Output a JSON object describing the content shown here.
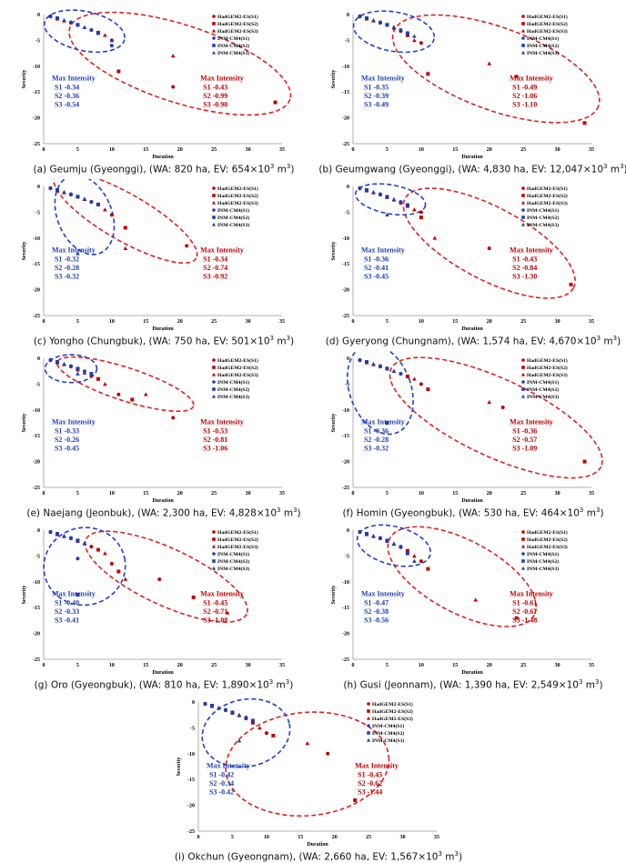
{
  "legend": [
    "HadGEM2-ES(S1)",
    "HadGEM2-ES(S2)",
    "HadGEM2-ES(S3)",
    "INM-CM4(S1)",
    "INM-CM4(S2)",
    "INM-CM4(S3)"
  ],
  "colors": {
    "hadgem": "#c00000",
    "inm": "#1f3fb0",
    "ellipse_red": "#e02020",
    "ellipse_blue": "#1f3fd0"
  },
  "chart_data": [
    {
      "type": "scatter",
      "caption": "(a) Geumju (Gyeonggi), (WA: 820 ha, EV: 654×10",
      "xlabel": "Duration",
      "ylabel": "Severity",
      "xlim": [
        0,
        35
      ],
      "ylim": [
        -25,
        0
      ],
      "xticks": [
        0,
        5,
        10,
        15,
        20,
        25,
        30,
        35
      ],
      "yticks": [
        0,
        -5,
        -10,
        -15,
        -20,
        -25
      ],
      "max_intensity": {
        "label": "Max Intensity",
        "blue": [
          "S1 -0.34",
          "S2 -0.36",
          "S3 -0.54"
        ],
        "red": [
          "S1 -0.43",
          "S2 -0.99",
          "S3 -0.90"
        ]
      },
      "hadgem": [
        [
          1,
          -0.4
        ],
        [
          2,
          -0.8
        ],
        [
          3,
          -1.2
        ],
        [
          4,
          -1.6
        ],
        [
          5,
          -2.0
        ],
        [
          6,
          -2.5
        ],
        [
          7,
          -3.0
        ],
        [
          8,
          -3.5
        ],
        [
          9,
          -4.0
        ],
        [
          10,
          -5.0
        ],
        [
          11,
          -11.0
        ],
        [
          19,
          -8.0
        ],
        [
          19,
          -14.0
        ],
        [
          34,
          -17.0
        ]
      ],
      "inm": [
        [
          1,
          -0.3
        ],
        [
          2,
          -0.7
        ],
        [
          3,
          -1.1
        ],
        [
          4,
          -1.5
        ],
        [
          5,
          -2.0
        ],
        [
          6,
          -2.5
        ],
        [
          7,
          -3.0
        ],
        [
          8,
          -3.6
        ],
        [
          10,
          -5.0
        ],
        [
          10,
          -6.0
        ]
      ]
    },
    {
      "type": "scatter",
      "caption": "(b) Geumgwang (Gyeonggi), (WA: 4,830 ha, EV: 12,047×10",
      "xlabel": "Duration",
      "ylabel": "Severity",
      "xlim": [
        0,
        35
      ],
      "ylim": [
        -25,
        0
      ],
      "xticks": [
        0,
        5,
        10,
        15,
        20,
        25,
        30,
        35
      ],
      "yticks": [
        0,
        -5,
        -10,
        -15,
        -20,
        -25
      ],
      "max_intensity": {
        "label": "Max Intensity",
        "blue": [
          "S1 -0.35",
          "S2 -0.39",
          "S3 -0.49"
        ],
        "red": [
          "S1 -0.49",
          "S2 -1.06",
          "S3 -1.10"
        ]
      },
      "hadgem": [
        [
          1,
          -0.4
        ],
        [
          2,
          -0.8
        ],
        [
          3,
          -1.2
        ],
        [
          4,
          -1.6
        ],
        [
          5,
          -2.0
        ],
        [
          6,
          -2.6
        ],
        [
          7,
          -3.2
        ],
        [
          8,
          -4.0
        ],
        [
          9,
          -5.0
        ],
        [
          10,
          -5.5
        ],
        [
          11,
          -11.5
        ],
        [
          20,
          -9.5
        ],
        [
          24,
          -12.0
        ],
        [
          34,
          -21.0
        ]
      ],
      "inm": [
        [
          1,
          -0.3
        ],
        [
          2,
          -0.7
        ],
        [
          3,
          -1.1
        ],
        [
          4,
          -1.5
        ],
        [
          5,
          -2.0
        ],
        [
          6,
          -2.4
        ],
        [
          7,
          -3.0
        ],
        [
          8,
          -3.6
        ],
        [
          9,
          -4.2
        ]
      ]
    },
    {
      "type": "scatter",
      "caption": "(c) Yongho (Chungbuk), (WA: 750 ha, EV: 501×10",
      "xlabel": "Duration",
      "ylabel": "Severity",
      "xlim": [
        0,
        35
      ],
      "ylim": [
        -25,
        0
      ],
      "xticks": [
        0,
        5,
        10,
        15,
        20,
        25,
        30,
        35
      ],
      "yticks": [
        0,
        -5,
        -10,
        -15,
        -20,
        -25
      ],
      "max_intensity": {
        "label": "Max Intensity",
        "blue": [
          "S1 -0.32",
          "S2 -0.28",
          "S3 -0.32"
        ],
        "red": [
          "S1 -0.34",
          "S2 -0.74",
          "S3 -0.92"
        ]
      },
      "hadgem": [
        [
          1,
          -0.4
        ],
        [
          2,
          -0.8
        ],
        [
          3,
          -1.2
        ],
        [
          4,
          -1.6
        ],
        [
          5,
          -2.0
        ],
        [
          6,
          -2.5
        ],
        [
          7,
          -3.0
        ],
        [
          8,
          -3.5
        ],
        [
          9,
          -4.5
        ],
        [
          10,
          -5.5
        ],
        [
          12,
          -8.0
        ],
        [
          12,
          -12.0
        ],
        [
          21,
          -11.5
        ]
      ],
      "inm": [
        [
          1,
          -0.3
        ],
        [
          2,
          -0.7
        ],
        [
          3,
          -1.1
        ],
        [
          4,
          -1.5
        ],
        [
          5,
          -2.0
        ],
        [
          6,
          -2.4
        ],
        [
          7,
          -3.0
        ],
        [
          8,
          -3.5
        ],
        [
          5,
          -13.0
        ]
      ]
    },
    {
      "type": "scatter",
      "caption": "(d) Gyeryong (Chungnam), (WA: 1,574 ha, EV: 4,670×10",
      "xlabel": "Duration",
      "ylabel": "Severity",
      "xlim": [
        0,
        35
      ],
      "ylim": [
        -25,
        0
      ],
      "xticks": [
        0,
        5,
        10,
        15,
        20,
        25,
        30,
        35
      ],
      "yticks": [
        0,
        -5,
        -10,
        -15,
        -20,
        -25
      ],
      "max_intensity": {
        "label": "Max Intensity",
        "blue": [
          "S1 -0.36",
          "S2 -0.41",
          "S3 -0.45"
        ],
        "red": [
          "S1 -0.43",
          "S2 -0.84",
          "S3 -1.30"
        ]
      },
      "hadgem": [
        [
          1,
          -0.4
        ],
        [
          2,
          -0.8
        ],
        [
          3,
          -1.2
        ],
        [
          4,
          -1.6
        ],
        [
          5,
          -2.1
        ],
        [
          6,
          -2.6
        ],
        [
          7,
          -3.2
        ],
        [
          8,
          -3.8
        ],
        [
          9,
          -4.5
        ],
        [
          10,
          -5.0
        ],
        [
          10,
          -6.0
        ],
        [
          12,
          -10.0
        ],
        [
          20,
          -12.0
        ],
        [
          32,
          -19.0
        ]
      ],
      "inm": [
        [
          1,
          -0.3
        ],
        [
          2,
          -0.7
        ],
        [
          3,
          -1.1
        ],
        [
          4,
          -1.5
        ],
        [
          5,
          -2.0
        ],
        [
          6,
          -2.5
        ],
        [
          7,
          -3.0
        ],
        [
          8,
          -3.6
        ],
        [
          5,
          -5.5
        ]
      ]
    },
    {
      "type": "scatter",
      "caption": "(e) Naejang (Jeonbuk), (WA: 2,300 ha, EV: 4,828×10",
      "xlabel": "Duration",
      "ylabel": "Severity",
      "xlim": [
        0,
        35
      ],
      "ylim": [
        -25,
        0
      ],
      "xticks": [
        0,
        5,
        10,
        15,
        20,
        25,
        30,
        35
      ],
      "yticks": [
        0,
        -5,
        -10,
        -15,
        -20,
        -25
      ],
      "max_intensity": {
        "label": "Max Intensity",
        "blue": [
          "S1 -0.33",
          "S2 -0.26",
          "S3 -0.45"
        ],
        "red": [
          "S1 -0.53",
          "S2 -0.81",
          "S3 -1.06"
        ]
      },
      "hadgem": [
        [
          1,
          -0.4
        ],
        [
          2,
          -0.8
        ],
        [
          3,
          -1.2
        ],
        [
          4,
          -1.6
        ],
        [
          5,
          -2.2
        ],
        [
          6,
          -2.8
        ],
        [
          7,
          -3.4
        ],
        [
          8,
          -4.0
        ],
        [
          9,
          -5.0
        ],
        [
          11,
          -7.0
        ],
        [
          13,
          -8.0
        ],
        [
          15,
          -7.0
        ],
        [
          19,
          -11.5
        ]
      ],
      "inm": [
        [
          1,
          -0.3
        ],
        [
          2,
          -0.7
        ],
        [
          3,
          -1.1
        ],
        [
          4,
          -1.5
        ],
        [
          5,
          -2.0
        ],
        [
          5,
          -3.0
        ],
        [
          6,
          -2.5
        ],
        [
          7,
          -3.0
        ]
      ]
    },
    {
      "type": "scatter",
      "caption": "(f) Homin (Gyeongbuk), (WA: 530 ha, EV: 464×10",
      "xlabel": "Duration",
      "ylabel": "Severity",
      "xlim": [
        0,
        35
      ],
      "ylim": [
        -25,
        0
      ],
      "xticks": [
        0,
        5,
        10,
        15,
        20,
        25,
        30,
        35
      ],
      "yticks": [
        0,
        -5,
        -10,
        -15,
        -20,
        -25
      ],
      "max_intensity": {
        "label": "Max Intensity",
        "blue": [
          "S1 -0.36",
          "S2 -0.28",
          "S3 -0.32"
        ],
        "red": [
          "S1 -0.36",
          "S2 -0.57",
          "S3 -1.09"
        ]
      },
      "hadgem": [
        [
          1,
          -0.4
        ],
        [
          2,
          -0.8
        ],
        [
          3,
          -1.2
        ],
        [
          4,
          -1.6
        ],
        [
          5,
          -2.0
        ],
        [
          6,
          -2.5
        ],
        [
          7,
          -3.0
        ],
        [
          8,
          -3.5
        ],
        [
          9,
          -4.0
        ],
        [
          10,
          -5.0
        ],
        [
          11,
          -6.0
        ],
        [
          20,
          -8.5
        ],
        [
          22,
          -9.5
        ],
        [
          34,
          -20.0
        ]
      ],
      "inm": [
        [
          1,
          -0.3
        ],
        [
          2,
          -0.7
        ],
        [
          3,
          -1.1
        ],
        [
          4,
          -1.5
        ],
        [
          5,
          -2.0
        ],
        [
          6,
          -2.5
        ],
        [
          7,
          -3.0
        ],
        [
          5,
          -12.5
        ]
      ]
    },
    {
      "type": "scatter",
      "caption": "(g) Oro (Gyeongbuk), (WA: 810 ha, EV: 1,890×10",
      "xlabel": "Duration",
      "ylabel": "Severity",
      "xlim": [
        0,
        35
      ],
      "ylim": [
        -25,
        0
      ],
      "xticks": [
        0,
        5,
        10,
        15,
        20,
        25,
        30,
        35
      ],
      "yticks": [
        0,
        -5,
        -10,
        -15,
        -20,
        -25
      ],
      "max_intensity": {
        "label": "Max Intensity",
        "blue": [
          "S1 -0.40",
          "S2 -0.33",
          "S3 -0.41"
        ],
        "red": [
          "S1 -0.45",
          "S2 -0.71",
          "S3 -1.08"
        ]
      },
      "hadgem": [
        [
          1,
          -0.4
        ],
        [
          2,
          -0.8
        ],
        [
          3,
          -1.2
        ],
        [
          4,
          -1.6
        ],
        [
          5,
          -2.1
        ],
        [
          6,
          -2.6
        ],
        [
          7,
          -3.2
        ],
        [
          8,
          -3.8
        ],
        [
          9,
          -4.5
        ],
        [
          10,
          -6.5
        ],
        [
          11,
          -8.0
        ],
        [
          12,
          -9.5
        ],
        [
          17,
          -9.5
        ],
        [
          22,
          -13.0
        ],
        [
          27,
          -16.0
        ]
      ],
      "inm": [
        [
          1,
          -0.3
        ],
        [
          2,
          -0.7
        ],
        [
          3,
          -1.1
        ],
        [
          4,
          -1.5
        ],
        [
          5,
          -2.0
        ],
        [
          6,
          -2.5
        ],
        [
          5,
          -5.5
        ],
        [
          5,
          -12.5
        ]
      ]
    },
    {
      "type": "scatter",
      "caption": "(h) Gusi (Jeonnam), (WA: 1,390 ha, EV: 2,549×10",
      "xlabel": "Duration",
      "ylabel": "Severity",
      "xlim": [
        0,
        35
      ],
      "ylim": [
        -25,
        0
      ],
      "xticks": [
        0,
        5,
        10,
        15,
        20,
        25,
        30,
        35
      ],
      "yticks": [
        0,
        -5,
        -10,
        -15,
        -20,
        -25
      ],
      "max_intensity": {
        "label": "Max Intensity",
        "blue": [
          "S1 -0.47",
          "S2 -0.38",
          "S3 -0.56"
        ],
        "red": [
          "S1 -0.61",
          "S2 -0.67",
          "S3 -1.48"
        ]
      },
      "hadgem": [
        [
          1,
          -0.4
        ],
        [
          2,
          -0.8
        ],
        [
          3,
          -1.2
        ],
        [
          4,
          -1.6
        ],
        [
          5,
          -2.1
        ],
        [
          6,
          -2.7
        ],
        [
          7,
          -3.3
        ],
        [
          8,
          -4.0
        ],
        [
          9,
          -5.0
        ],
        [
          10,
          -6.0
        ],
        [
          11,
          -7.5
        ],
        [
          18,
          -13.5
        ],
        [
          24,
          -17.0
        ]
      ],
      "inm": [
        [
          1,
          -0.3
        ],
        [
          2,
          -0.7
        ],
        [
          3,
          -1.1
        ],
        [
          4,
          -1.5
        ],
        [
          5,
          -2.0
        ],
        [
          6,
          -2.6
        ],
        [
          7,
          -3.2
        ],
        [
          8,
          -4.5
        ],
        [
          9,
          -6.0
        ]
      ]
    },
    {
      "type": "scatter",
      "caption": "(i) Okchun (Gyeongnam), (WA: 2,660 ha, EV: 1,567×10",
      "xlabel": "Duration",
      "ylabel": "Severity",
      "xlim": [
        0,
        35
      ],
      "ylim": [
        -25,
        0
      ],
      "xticks": [
        0,
        5,
        10,
        15,
        20,
        25,
        30,
        35
      ],
      "yticks": [
        0,
        -5,
        -10,
        -15,
        -20,
        -25
      ],
      "max_intensity": {
        "label": "Max Intensity",
        "blue": [
          "S1 -0.42",
          "S2 -0.34",
          "S3 -0.42"
        ],
        "red": [
          "S1 -0.45",
          "S2 -0.62",
          "S3 -1.44"
        ]
      },
      "hadgem": [
        [
          1,
          -0.4
        ],
        [
          2,
          -0.8
        ],
        [
          3,
          -1.2
        ],
        [
          4,
          -1.6
        ],
        [
          5,
          -2.1
        ],
        [
          6,
          -2.6
        ],
        [
          7,
          -3.2
        ],
        [
          8,
          -4.0
        ],
        [
          9,
          -5.0
        ],
        [
          10,
          -6.0
        ],
        [
          11,
          -6.5
        ],
        [
          16,
          -8.0
        ],
        [
          19,
          -10.0
        ],
        [
          23,
          -19.0
        ]
      ],
      "inm": [
        [
          1,
          -0.3
        ],
        [
          2,
          -0.7
        ],
        [
          3,
          -1.1
        ],
        [
          4,
          -1.5
        ],
        [
          5,
          -2.0
        ],
        [
          6,
          -2.5
        ],
        [
          7,
          -3.0
        ],
        [
          8,
          -3.6
        ],
        [
          6,
          -7.5
        ]
      ]
    }
  ]
}
